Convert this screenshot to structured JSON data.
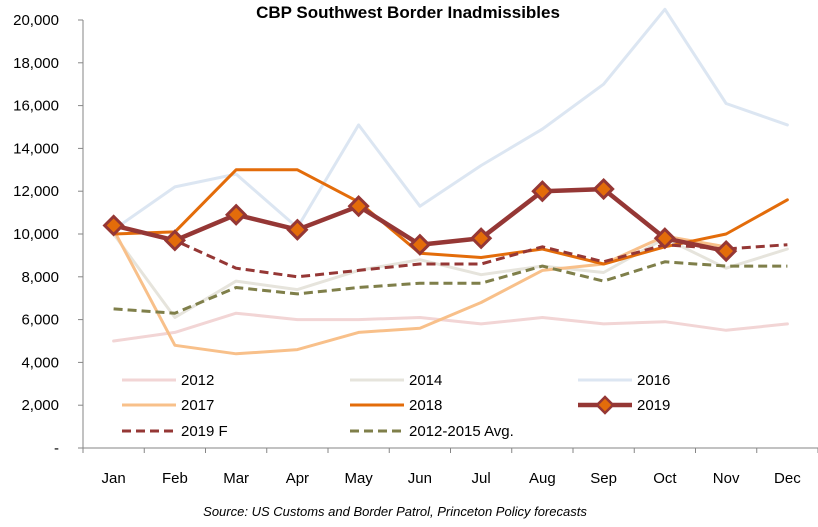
{
  "chart_data": {
    "type": "line",
    "title": "CBP Southwest Border Inadmissibles",
    "source": "Source: US Customs and Border Patrol, Princeton Policy forecasts",
    "categories": [
      "Jan",
      "Feb",
      "Mar",
      "Apr",
      "May",
      "Jun",
      "Jul",
      "Aug",
      "Sep",
      "Oct",
      "Nov",
      "Dec"
    ],
    "y_ticks": [
      "-",
      "2,000",
      "4,000",
      "6,000",
      "8,000",
      "10,000",
      "12,000",
      "14,000",
      "16,000",
      "18,000",
      "20,000"
    ],
    "ylim": [
      0,
      20000
    ],
    "grid": false,
    "legend_position": "bottom-inside",
    "series": [
      {
        "name": "2012",
        "color": "#f2d5d5",
        "style": "solid",
        "width": 3,
        "values": [
          5000,
          5400,
          6300,
          6000,
          6000,
          6100,
          5800,
          6100,
          5800,
          5900,
          5500,
          5800
        ]
      },
      {
        "name": "2014",
        "color": "#e6e4dc",
        "style": "solid",
        "width": 3,
        "values": [
          10000,
          6100,
          7800,
          7400,
          8300,
          8800,
          8100,
          8500,
          8200,
          9800,
          8400,
          9300
        ]
      },
      {
        "name": "2016",
        "color": "#dce6f2",
        "style": "solid",
        "width": 3,
        "values": [
          10200,
          12200,
          12800,
          10300,
          15100,
          11300,
          13200,
          14900,
          17000,
          20500,
          16100,
          15100
        ]
      },
      {
        "name": "2017",
        "color": "#f8c08a",
        "style": "solid",
        "width": 3,
        "values": [
          10200,
          4800,
          4400,
          4600,
          5400,
          5600,
          6800,
          8300,
          8600,
          9900,
          9400,
          null
        ]
      },
      {
        "name": "2018",
        "color": "#e36c0a",
        "style": "solid",
        "width": 3,
        "values": [
          10000,
          10100,
          13000,
          13000,
          11500,
          9100,
          8900,
          9300,
          8600,
          9400,
          10000,
          11600
        ]
      },
      {
        "name": "2019",
        "color": "#953735",
        "style": "solid",
        "width": 4.5,
        "marker": "diamond",
        "values": [
          10400,
          9700,
          10900,
          10200,
          11300,
          9500,
          9800,
          12000,
          12100,
          9800,
          9200,
          null
        ]
      },
      {
        "name": "2019 F",
        "color": "#953735",
        "style": "dash",
        "width": 3,
        "values": [
          10400,
          9700,
          8400,
          8000,
          8300,
          8600,
          8600,
          9400,
          8700,
          9500,
          9300,
          9500
        ]
      },
      {
        "name": "2012-2015 Avg.",
        "color": "#7f7f4a",
        "style": "dash",
        "width": 3,
        "values": [
          6500,
          6300,
          7500,
          7200,
          7500,
          7700,
          7700,
          8500,
          7800,
          8700,
          8500,
          8500
        ]
      }
    ]
  }
}
